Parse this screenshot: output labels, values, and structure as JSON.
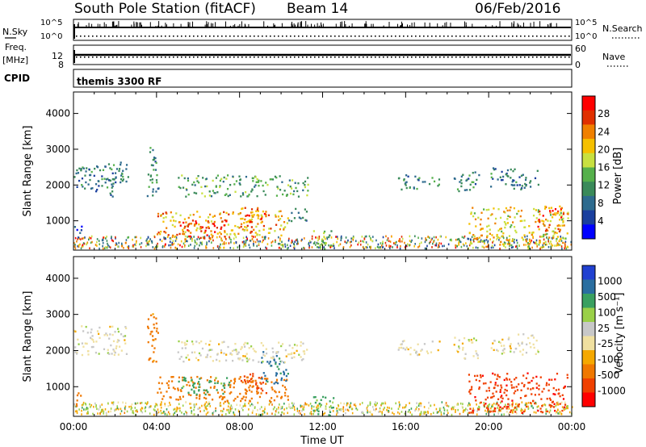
{
  "header": {
    "title": "South Pole Station (fitACF)",
    "beam": "Beam 14",
    "date": "06/Feb/2016"
  },
  "panels": {
    "nsky": {
      "label": "N.Sky",
      "left_ticks": [
        "10^5",
        "10^0"
      ],
      "right_ticks": [
        "10^5",
        "10^0"
      ],
      "right_label": "N.Search"
    },
    "freq": {
      "label_line1": "Freq.",
      "label_line2": "[MHz]",
      "left_ticks": [
        "12",
        "8"
      ],
      "right_ticks": [
        "60",
        "0"
      ],
      "right_label": "Nave"
    },
    "cpid": {
      "label": "CPID",
      "mode": "themis 3300 RF"
    }
  },
  "colors": {
    "power": [
      "#0000ff",
      "#1a3f9e",
      "#2e6b8e",
      "#3a8a5a",
      "#55b04b",
      "#c8e040",
      "#f5c000",
      "#f08000",
      "#e03000",
      "#ff0000"
    ],
    "velocity": [
      "#ff0000",
      "#f04000",
      "#f07800",
      "#f5a800",
      "#f0e0a0",
      "#c8c8c8",
      "#9ad048",
      "#3aa060",
      "#2a6ea0",
      "#2040d0"
    ]
  },
  "chart_data": [
    {
      "type": "heatmap",
      "name": "power",
      "xlabel": "",
      "ylabel": "Slant Range [km]",
      "x_range_hours": [
        0,
        24
      ],
      "ylim": [
        180,
        4600
      ],
      "yticks": [
        "1000",
        "2000",
        "3000",
        "4000"
      ],
      "colorbar": {
        "label": "Power [dB]",
        "range": [
          0,
          32
        ],
        "ticks": [
          "4",
          "8",
          "12",
          "16",
          "20",
          "24",
          "28"
        ]
      },
      "regions": [
        {
          "t0": 0.0,
          "t1": 2.6,
          "r0": 1900,
          "r1": 2700,
          "v": 10
        },
        {
          "t0": 0.0,
          "t1": 0.4,
          "r0": 450,
          "r1": 900,
          "v": 6
        },
        {
          "t0": 1.0,
          "t1": 2.0,
          "r0": 1700,
          "r1": 2200,
          "v": 9
        },
        {
          "t0": 3.5,
          "t1": 4.1,
          "r0": 1700,
          "r1": 3100,
          "v": 10
        },
        {
          "t0": 4.0,
          "t1": 10.3,
          "r0": 600,
          "r1": 1300,
          "v": 22
        },
        {
          "t0": 5.0,
          "t1": 7.5,
          "r0": 500,
          "r1": 1050,
          "v": 27
        },
        {
          "t0": 8.0,
          "t1": 9.3,
          "r0": 800,
          "r1": 1400,
          "v": 25
        },
        {
          "t0": 5.0,
          "t1": 11.3,
          "r0": 1700,
          "r1": 2300,
          "v": 13
        },
        {
          "t0": 10.3,
          "t1": 11.2,
          "r0": 1000,
          "r1": 1400,
          "v": 10
        },
        {
          "t0": 11.5,
          "t1": 12.5,
          "r0": 200,
          "r1": 750,
          "v": 15
        },
        {
          "t0": 15.6,
          "t1": 17.6,
          "r0": 1900,
          "r1": 2300,
          "v": 11
        },
        {
          "t0": 18.3,
          "t1": 19.5,
          "r0": 1800,
          "r1": 2400,
          "v": 11
        },
        {
          "t0": 20.0,
          "t1": 22.4,
          "r0": 1900,
          "r1": 2500,
          "v": 9
        },
        {
          "t0": 19.0,
          "t1": 23.8,
          "r0": 300,
          "r1": 1400,
          "v": 20
        },
        {
          "t0": 22.3,
          "t1": 23.6,
          "r0": 700,
          "r1": 1500,
          "v": 26
        }
      ]
    },
    {
      "type": "heatmap",
      "name": "velocity",
      "xlabel": "Time UT",
      "ylabel": "Slant Range [km]",
      "x_range_hours": [
        0,
        24
      ],
      "ylim": [
        180,
        4600
      ],
      "xticks": [
        "00:00",
        "04:00",
        "08:00",
        "12:00",
        "16:00",
        "20:00",
        "00:00"
      ],
      "yticks": [
        "1000",
        "2000",
        "3000",
        "4000"
      ],
      "colorbar": {
        "label": "Velocity [m s⁻¹]",
        "ticks": [
          "1000",
          "500",
          "100",
          "25",
          "-25",
          "-100",
          "-500",
          "-1000"
        ]
      },
      "regions": [
        {
          "t0": 0.0,
          "t1": 2.6,
          "r0": 1900,
          "r1": 2700,
          "v": 0
        },
        {
          "t0": 0.0,
          "t1": 0.4,
          "r0": 450,
          "r1": 900,
          "v": -200
        },
        {
          "t0": 3.5,
          "t1": 4.1,
          "r0": 1700,
          "r1": 3100,
          "v": -150
        },
        {
          "t0": 4.0,
          "t1": 10.3,
          "r0": 600,
          "r1": 1300,
          "v": -200
        },
        {
          "t0": 5.0,
          "t1": 7.5,
          "r0": 800,
          "r1": 1300,
          "v": 150
        },
        {
          "t0": 8.0,
          "t1": 9.3,
          "r0": 800,
          "r1": 1400,
          "v": -400
        },
        {
          "t0": 9.0,
          "t1": 10.3,
          "r0": 1100,
          "r1": 2000,
          "v": 600
        },
        {
          "t0": 5.0,
          "t1": 11.3,
          "r0": 1700,
          "r1": 2300,
          "v": 0
        },
        {
          "t0": 11.5,
          "t1": 12.5,
          "r0": 200,
          "r1": 750,
          "v": 150
        },
        {
          "t0": 15.6,
          "t1": 17.6,
          "r0": 1900,
          "r1": 2300,
          "v": 0
        },
        {
          "t0": 18.3,
          "t1": 19.5,
          "r0": 1800,
          "r1": 2400,
          "v": 0
        },
        {
          "t0": 20.0,
          "t1": 22.4,
          "r0": 1900,
          "r1": 2500,
          "v": 0
        },
        {
          "t0": 19.0,
          "t1": 23.8,
          "r0": 300,
          "r1": 1400,
          "v": -600
        }
      ]
    }
  ]
}
